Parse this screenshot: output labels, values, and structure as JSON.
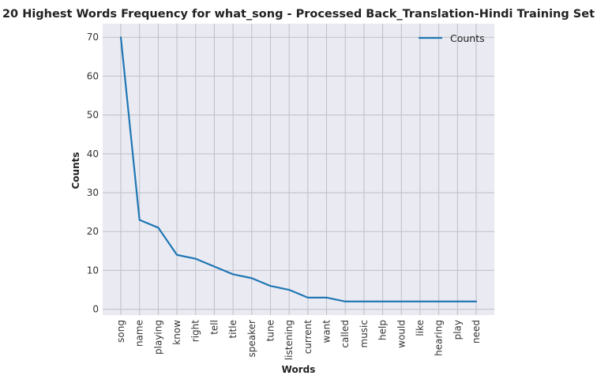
{
  "chart_data": {
    "type": "line",
    "title": "20 Highest Words Frequency for what_song - Processed Back_Translation-Hindi Training Set",
    "xlabel": "Words",
    "ylabel": "Counts",
    "categories": [
      "song",
      "name",
      "playing",
      "know",
      "right",
      "tell",
      "title",
      "speaker",
      "tune",
      "listening",
      "current",
      "want",
      "called",
      "music",
      "help",
      "would",
      "like",
      "hearing",
      "play",
      "need"
    ],
    "series": [
      {
        "name": "Counts",
        "values": [
          70,
          23,
          21,
          14,
          13,
          11,
          9,
          8,
          6,
          5,
          3,
          3,
          2,
          2,
          2,
          2,
          2,
          2,
          2,
          2
        ],
        "color": "#1f77b4"
      }
    ],
    "ylim": [
      -1.5,
      73.5
    ],
    "yticks": [
      0,
      10,
      20,
      30,
      40,
      50,
      60,
      70
    ],
    "grid": true,
    "legend_position": "top-right",
    "colors": {
      "plot_background": "#eaeaf2",
      "grid": "#bfbfc6",
      "line": "#1f77b4"
    }
  }
}
